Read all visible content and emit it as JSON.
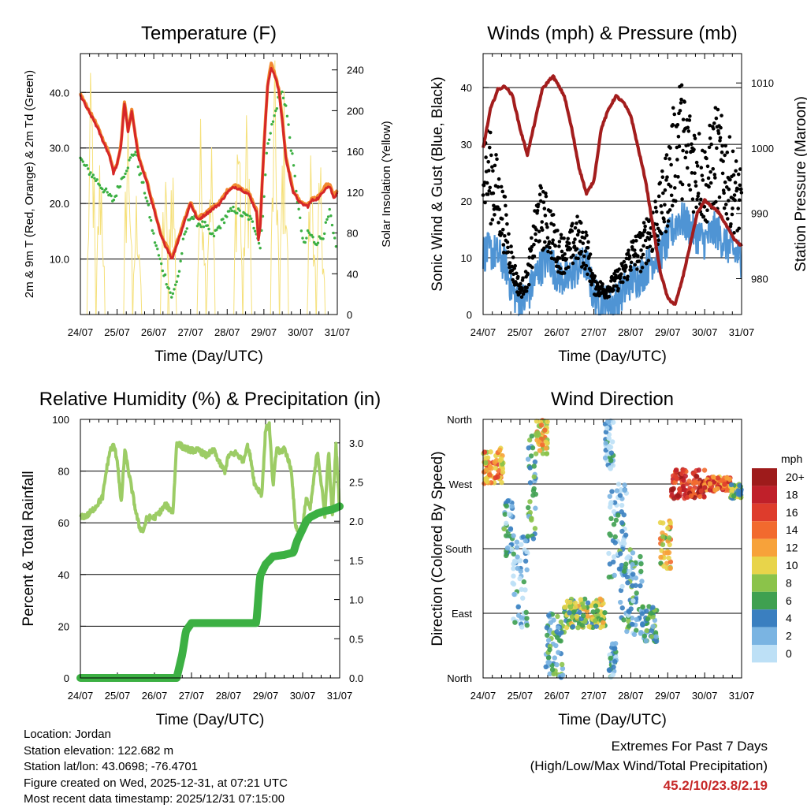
{
  "chart_data": [
    {
      "type": "line",
      "title": "Temperature (F)",
      "xlabel": "Time (Day/UTC)",
      "ylabel": "2m & 9m T (Red, Orange) & 2m Td (Green)",
      "y2label": "Solar Insolation (Yellow)",
      "x_ticks": [
        "24/07",
        "25/07",
        "26/07",
        "27/07",
        "28/07",
        "29/07",
        "30/07",
        "31/07"
      ],
      "ylim": [
        0,
        47
      ],
      "y_ticks": [
        10,
        20,
        30,
        40
      ],
      "y_tick_labels": [
        "10.0",
        "20.0",
        "30.0",
        "40.0"
      ],
      "y2lim": [
        0,
        256
      ],
      "y2_ticks": [
        0,
        40,
        80,
        120,
        160,
        200,
        240
      ],
      "y2_tick_labels": [
        "0",
        "40",
        "80",
        "120",
        "160",
        "200",
        "240"
      ],
      "series": [
        {
          "name": "2m T",
          "color": "#d62728",
          "x": [
            0,
            0.15,
            0.4,
            0.6,
            0.8,
            0.9,
            1.0,
            1.1,
            1.2,
            1.3,
            1.4,
            1.5,
            1.6,
            1.8,
            2.0,
            2.2,
            2.5,
            2.7,
            2.8,
            3.0,
            3.2,
            3.4,
            3.6,
            3.8,
            4.0,
            4.2,
            4.4,
            4.6,
            4.8,
            4.85,
            4.9,
            5.0,
            5.1,
            5.2,
            5.3,
            5.4,
            5.5,
            5.6,
            5.7,
            5.8,
            6.0,
            6.2,
            6.3,
            6.5,
            6.7,
            6.8,
            6.9,
            7.0
          ],
          "values": [
            39.5,
            37.5,
            34.5,
            31.5,
            28.5,
            25.5,
            27,
            30,
            38,
            33,
            36.5,
            32,
            28,
            24,
            19,
            14,
            10,
            14,
            16,
            20,
            17,
            18,
            19,
            20,
            22,
            23,
            22.5,
            21.5,
            18.5,
            13.5,
            16,
            30,
            41,
            44.5,
            43,
            40.5,
            35,
            28,
            25,
            22,
            20,
            19.5,
            20.5,
            21,
            23,
            23,
            21,
            22
          ]
        },
        {
          "name": "9m T",
          "color": "#f28a30",
          "x": [
            0,
            0.15,
            0.4,
            0.6,
            0.8,
            0.9,
            1.0,
            1.1,
            1.2,
            1.3,
            1.4,
            1.5,
            1.6,
            1.8,
            2.0,
            2.2,
            2.5,
            2.7,
            2.8,
            3.0,
            3.2,
            3.4,
            3.6,
            3.8,
            4.0,
            4.2,
            4.4,
            4.6,
            4.8,
            4.85,
            4.9,
            5.0,
            5.1,
            5.2,
            5.3,
            5.4,
            5.5,
            5.6,
            5.7,
            5.8,
            6.0,
            6.2,
            6.3,
            6.5,
            6.7,
            6.8,
            6.9,
            7.0
          ],
          "values": [
            39.8,
            37.8,
            34.8,
            31.8,
            28.8,
            25.8,
            27.3,
            30.3,
            38.5,
            33.3,
            36.8,
            32.3,
            28.3,
            24.3,
            19.3,
            14.3,
            10.3,
            14.3,
            16.3,
            20.3,
            17.3,
            18.3,
            19.3,
            20.3,
            22.3,
            23.3,
            22.8,
            21.8,
            18.8,
            13.8,
            16.3,
            30.3,
            41.3,
            45.2,
            43.3,
            40.8,
            35.3,
            28.3,
            25.3,
            22.3,
            20.3,
            19.8,
            20.8,
            21.3,
            23.3,
            23.3,
            21.3,
            22.3
          ]
        },
        {
          "name": "2m Td",
          "color": "#3cb043",
          "x": [
            0,
            0.15,
            0.4,
            0.7,
            0.9,
            1.1,
            1.3,
            1.4,
            1.5,
            1.6,
            1.8,
            2.0,
            2.2,
            2.4,
            2.5,
            2.7,
            2.8,
            3.0,
            3.2,
            3.4,
            3.6,
            3.8,
            4.0,
            4.2,
            4.4,
            4.6,
            4.8,
            4.9,
            5.0,
            5.1,
            5.3,
            5.4,
            5.5,
            5.6,
            5.8,
            6.0,
            6.1,
            6.2,
            6.4,
            6.6,
            6.8,
            6.9,
            7.0
          ],
          "values": [
            28,
            26.5,
            24.5,
            22,
            20.5,
            24,
            27,
            28.5,
            29.5,
            26,
            21,
            14,
            9,
            5,
            3,
            8,
            13,
            18,
            16.5,
            16,
            14,
            16,
            18,
            19,
            18,
            17.5,
            15,
            12,
            21,
            31,
            36,
            39,
            40,
            37.5,
            27,
            16,
            12,
            15,
            13,
            14,
            18.5,
            14,
            11
          ]
        },
        {
          "name": "Solar Insolation",
          "color": "#f5e07a",
          "axis": "y2",
          "peaks_x": [
            0.3,
            0.55,
            1.3,
            1.55,
            2.3,
            2.5,
            3.3,
            3.55,
            4.3,
            4.55,
            5.3,
            5.55,
            6.3,
            6.55
          ],
          "peaks_values": [
            250,
            180,
            230,
            140,
            150,
            180,
            210,
            200,
            240,
            220,
            250,
            230,
            190,
            160
          ]
        }
      ]
    },
    {
      "type": "scatter",
      "title": "Winds (mph) & Pressure (mb)",
      "xlabel": "Time (Day/UTC)",
      "ylabel": "Sonic Wind & Gust (Blue, Black)",
      "y2label": "Station Pressure (Maroon)",
      "x_ticks": [
        "24/07",
        "25/07",
        "26/07",
        "27/07",
        "28/07",
        "29/07",
        "30/07",
        "31/07"
      ],
      "ylim": [
        0,
        46
      ],
      "y_ticks": [
        0,
        10,
        20,
        30,
        40
      ],
      "y_tick_labels": [
        "0",
        "10",
        "20",
        "30",
        "40"
      ],
      "y2lim": [
        974.5,
        1014.5
      ],
      "y2_ticks": [
        980,
        990,
        1000,
        1010
      ],
      "y2_tick_labels": [
        "980",
        "990",
        "1000",
        "1010"
      ],
      "series": [
        {
          "name": "Sonic Wind",
          "color": "#4f94d4",
          "x": [
            0,
            0.3,
            0.6,
            0.8,
            1.0,
            1.2,
            1.5,
            1.8,
            2.0,
            2.3,
            2.5,
            2.8,
            3.0,
            3.3,
            3.5,
            3.8,
            4.0,
            4.3,
            4.5,
            4.8,
            5.0,
            5.3,
            5.5,
            5.8,
            6.0,
            6.3,
            6.5,
            6.8,
            7.0
          ],
          "values": [
            11,
            11,
            9,
            4,
            2,
            3,
            8,
            10,
            7,
            6,
            8,
            9,
            3,
            2,
            2,
            4,
            6,
            7,
            9,
            11,
            13,
            17,
            16,
            14,
            13,
            15,
            13,
            11,
            10
          ]
        },
        {
          "name": "Gust",
          "color": "#000000",
          "x": [
            0,
            0.3,
            0.6,
            0.8,
            1.0,
            1.2,
            1.5,
            1.8,
            2.0,
            2.3,
            2.5,
            2.8,
            3.0,
            3.3,
            3.5,
            3.8,
            4.0,
            4.3,
            4.5,
            4.8,
            5.0,
            5.3,
            5.5,
            5.8,
            6.0,
            6.3,
            6.5,
            6.8,
            7.0
          ],
          "values": [
            26,
            22,
            15,
            8,
            4,
            6,
            17,
            15,
            11,
            10,
            13,
            11,
            5,
            4,
            5,
            7,
            10,
            11,
            14,
            17,
            22,
            31,
            28,
            25,
            22,
            27,
            25,
            21,
            18
          ]
        },
        {
          "name": "Station Pressure",
          "color": "#a31d1d",
          "x": [
            0,
            0.2,
            0.4,
            0.6,
            0.8,
            1.0,
            1.2,
            1.4,
            1.6,
            1.8,
            1.9,
            2.0,
            2.2,
            2.4,
            2.6,
            2.8,
            3.0,
            3.2,
            3.4,
            3.6,
            3.8,
            4.0,
            4.2,
            4.4,
            4.6,
            4.8,
            5.0,
            5.2,
            5.4,
            5.6,
            5.8,
            6.0,
            6.2,
            6.4,
            6.6,
            6.8,
            7.0
          ],
          "values": [
            1000,
            1006,
            1009,
            1009.5,
            1008,
            1003,
            999,
            1004,
            1009,
            1010.5,
            1011,
            1010,
            1008,
            1003,
            997,
            993,
            995,
            1003,
            1006,
            1008,
            1007,
            1005,
            1000,
            995,
            988,
            981,
            977,
            976,
            980,
            985,
            990,
            992,
            991,
            990,
            988,
            986,
            985
          ]
        }
      ]
    },
    {
      "type": "line",
      "title": "Relative Humidity (%) & Precipitation (in)",
      "xlabel": "Time (Day/UTC)",
      "ylabel": "Percent & Total Rainfall",
      "x_ticks": [
        "24/07",
        "25/07",
        "26/07",
        "27/07",
        "28/07",
        "29/07",
        "30/07",
        "31/07"
      ],
      "ylim": [
        0,
        100
      ],
      "y_ticks": [
        0,
        20,
        40,
        60,
        80,
        100
      ],
      "y_tick_labels": [
        "0",
        "20",
        "40",
        "60",
        "80",
        "100"
      ],
      "y2lim": [
        0,
        3.3
      ],
      "y2_ticks": [
        0,
        0.5,
        1.0,
        1.5,
        2.0,
        2.5,
        3.0
      ],
      "y2_tick_labels": [
        "0.0",
        "0.5",
        "1.0",
        "1.5",
        "2.0",
        "2.5",
        "3.0"
      ],
      "series": [
        {
          "name": "Relative Humidity",
          "color": "#9ccc65",
          "x": [
            0,
            0.2,
            0.4,
            0.6,
            0.7,
            0.8,
            0.9,
            1.0,
            1.1,
            1.2,
            1.3,
            1.4,
            1.5,
            1.6,
            1.7,
            1.8,
            2.0,
            2.2,
            2.3,
            2.5,
            2.6,
            2.7,
            2.8,
            3.0,
            3.2,
            3.4,
            3.6,
            3.8,
            3.9,
            4.0,
            4.2,
            4.4,
            4.5,
            4.6,
            4.7,
            4.8,
            4.9,
            5.0,
            5.1,
            5.2,
            5.3,
            5.4,
            5.5,
            5.6,
            5.7,
            5.8,
            5.9,
            6.0,
            6.1,
            6.2,
            6.4,
            6.6,
            6.7,
            6.8,
            6.9,
            7.0
          ],
          "values": [
            62,
            63,
            66,
            70,
            80,
            88,
            90,
            84,
            67,
            88,
            80,
            72,
            64,
            58,
            57,
            62,
            62,
            65,
            67,
            64,
            91,
            90,
            89,
            88,
            88,
            86,
            88,
            82,
            80,
            86,
            87,
            84,
            90,
            85,
            75,
            73,
            71,
            96,
            98,
            74,
            89,
            87,
            89,
            85,
            80,
            60,
            55,
            58,
            70,
            65,
            88,
            63,
            88,
            62,
            90,
            65
          ]
        },
        {
          "name": "Total Precipitation",
          "color": "#3cb043",
          "axis": "y2",
          "x": [
            0,
            2.6,
            2.75,
            2.85,
            3.0,
            3.3,
            3.6,
            4.0,
            4.3,
            4.5,
            4.75,
            4.85,
            5.0,
            5.2,
            5.5,
            5.75,
            5.85,
            6.0,
            6.1,
            6.2,
            6.4,
            6.6,
            6.8,
            7.0
          ],
          "values": [
            0,
            0,
            0.3,
            0.6,
            0.7,
            0.7,
            0.7,
            0.7,
            0.7,
            0.7,
            0.7,
            1.3,
            1.45,
            1.55,
            1.57,
            1.6,
            1.75,
            1.9,
            2.0,
            2.05,
            2.1,
            2.13,
            2.15,
            2.19
          ]
        }
      ]
    },
    {
      "type": "scatter",
      "title": "Wind Direction",
      "xlabel": "Time (Day/UTC)",
      "ylabel": "Direction (Colored By Speed)",
      "x_ticks": [
        "24/07",
        "25/07",
        "26/07",
        "27/07",
        "28/07",
        "29/07",
        "30/07",
        "31/07"
      ],
      "ylim": [
        0,
        360
      ],
      "y_ticks": [
        0,
        90,
        180,
        270,
        360
      ],
      "y_tick_labels": [
        "North",
        "East",
        "South",
        "West",
        "North"
      ],
      "colorbar": {
        "title": "mph",
        "labels": [
          "20+",
          "18",
          "16",
          "14",
          "12",
          "10",
          "8",
          "6",
          "4",
          "2",
          "0"
        ],
        "colors": [
          "#9e1b1b",
          "#c0202a",
          "#de3c2c",
          "#f26a2e",
          "#f7a23a",
          "#e8d44a",
          "#8bc34a",
          "#3fa050",
          "#3a7fc0",
          "#7ab4e2",
          "#bde0f6"
        ]
      },
      "clusters": [
        {
          "x0": 0.0,
          "x1": 0.55,
          "d0": 270,
          "d1": 320,
          "speed": 12
        },
        {
          "x0": 0.55,
          "x1": 0.8,
          "d0": 170,
          "d1": 250,
          "speed": 4
        },
        {
          "x0": 0.8,
          "x1": 1.2,
          "d0": 60,
          "d1": 200,
          "speed": 2
        },
        {
          "x0": 1.2,
          "x1": 1.45,
          "d0": 190,
          "d1": 340,
          "speed": 5
        },
        {
          "x0": 1.45,
          "x1": 1.75,
          "d0": 310,
          "d1": 360,
          "speed": 11
        },
        {
          "x0": 1.7,
          "x1": 2.2,
          "d0": 0,
          "d1": 90,
          "speed": 5
        },
        {
          "x0": 2.2,
          "x1": 3.3,
          "d0": 70,
          "d1": 110,
          "speed": 8
        },
        {
          "x0": 3.3,
          "x1": 3.55,
          "d0": 290,
          "d1": 360,
          "speed": 2
        },
        {
          "x0": 3.4,
          "x1": 3.6,
          "d0": 0,
          "d1": 50,
          "speed": 3
        },
        {
          "x0": 3.4,
          "x1": 3.9,
          "d0": 140,
          "d1": 270,
          "speed": 3
        },
        {
          "x0": 3.7,
          "x1": 4.3,
          "d0": 60,
          "d1": 180,
          "speed": 4
        },
        {
          "x0": 4.3,
          "x1": 4.7,
          "d0": 50,
          "d1": 100,
          "speed": 5
        },
        {
          "x0": 4.8,
          "x1": 5.1,
          "d0": 150,
          "d1": 220,
          "speed": 10
        },
        {
          "x0": 5.1,
          "x1": 6.0,
          "d0": 250,
          "d1": 290,
          "speed": 17
        },
        {
          "x0": 6.0,
          "x1": 6.7,
          "d0": 260,
          "d1": 280,
          "speed": 14
        },
        {
          "x0": 6.7,
          "x1": 7.0,
          "d0": 250,
          "d1": 270,
          "speed": 7
        }
      ]
    }
  ],
  "footer": {
    "location": "Location: Jordan",
    "elevation": "Station elevation: 122.682 m",
    "latlon": "Station lat/lon: 43.0698; -76.4701",
    "created": "Figure created on Wed, 2025-12-31, at 07:21 UTC",
    "recent": "Most recent data timestamp: 2025/12/31 07:15:00"
  },
  "extremes": {
    "title": "Extremes For Past 7 Days",
    "subtitle": "(High/Low/Max Wind/Total Precipitation)",
    "values": "45.2/10/23.8/2.19"
  }
}
